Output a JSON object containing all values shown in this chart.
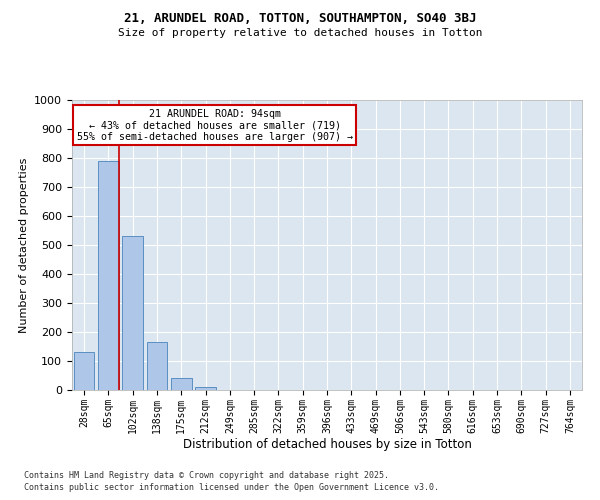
{
  "title1": "21, ARUNDEL ROAD, TOTTON, SOUTHAMPTON, SO40 3BJ",
  "title2": "Size of property relative to detached houses in Totton",
  "xlabel": "Distribution of detached houses by size in Totton",
  "ylabel": "Number of detached properties",
  "categories": [
    "28sqm",
    "65sqm",
    "102sqm",
    "138sqm",
    "175sqm",
    "212sqm",
    "249sqm",
    "285sqm",
    "322sqm",
    "359sqm",
    "396sqm",
    "433sqm",
    "469sqm",
    "506sqm",
    "543sqm",
    "580sqm",
    "616sqm",
    "653sqm",
    "690sqm",
    "727sqm",
    "764sqm"
  ],
  "values": [
    130,
    790,
    530,
    165,
    40,
    12,
    0,
    0,
    0,
    0,
    0,
    0,
    0,
    0,
    0,
    0,
    0,
    0,
    0,
    0,
    0
  ],
  "bar_color": "#aec6e8",
  "bar_edge_color": "#5a8fc2",
  "highlight_line_color": "#cc0000",
  "annotation_line1": "21 ARUNDEL ROAD: 94sqm",
  "annotation_line2": "← 43% of detached houses are smaller (719)",
  "annotation_line3": "55% of semi-detached houses are larger (907) →",
  "annotation_box_color": "#ffffff",
  "annotation_box_edge": "#cc0000",
  "ylim": [
    0,
    1000
  ],
  "yticks": [
    0,
    100,
    200,
    300,
    400,
    500,
    600,
    700,
    800,
    900,
    1000
  ],
  "background_color": "#dce6f0",
  "grid_color": "#ffffff",
  "fig_bg_color": "#ffffff",
  "footnote1": "Contains HM Land Registry data © Crown copyright and database right 2025.",
  "footnote2": "Contains public sector information licensed under the Open Government Licence v3.0."
}
